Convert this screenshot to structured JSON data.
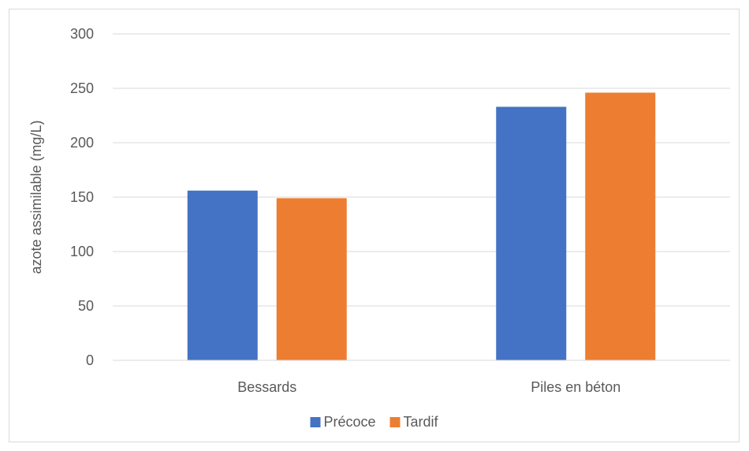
{
  "chart_data": {
    "type": "bar",
    "title": "",
    "xlabel": "",
    "ylabel": "azote assimilable  (mg/L)",
    "categories": [
      "Bessards",
      "Piles en béton"
    ],
    "series": [
      {
        "name": "Précoce",
        "color": "#4472c4",
        "values": [
          156,
          233
        ]
      },
      {
        "name": "Tardif",
        "color": "#ed7d31",
        "values": [
          149,
          246
        ]
      }
    ],
    "ylim": [
      0,
      300
    ],
    "yticks": [
      "0",
      "50",
      "100",
      "150",
      "200",
      "250",
      "300"
    ],
    "grid": true,
    "legend": "bottom"
  }
}
